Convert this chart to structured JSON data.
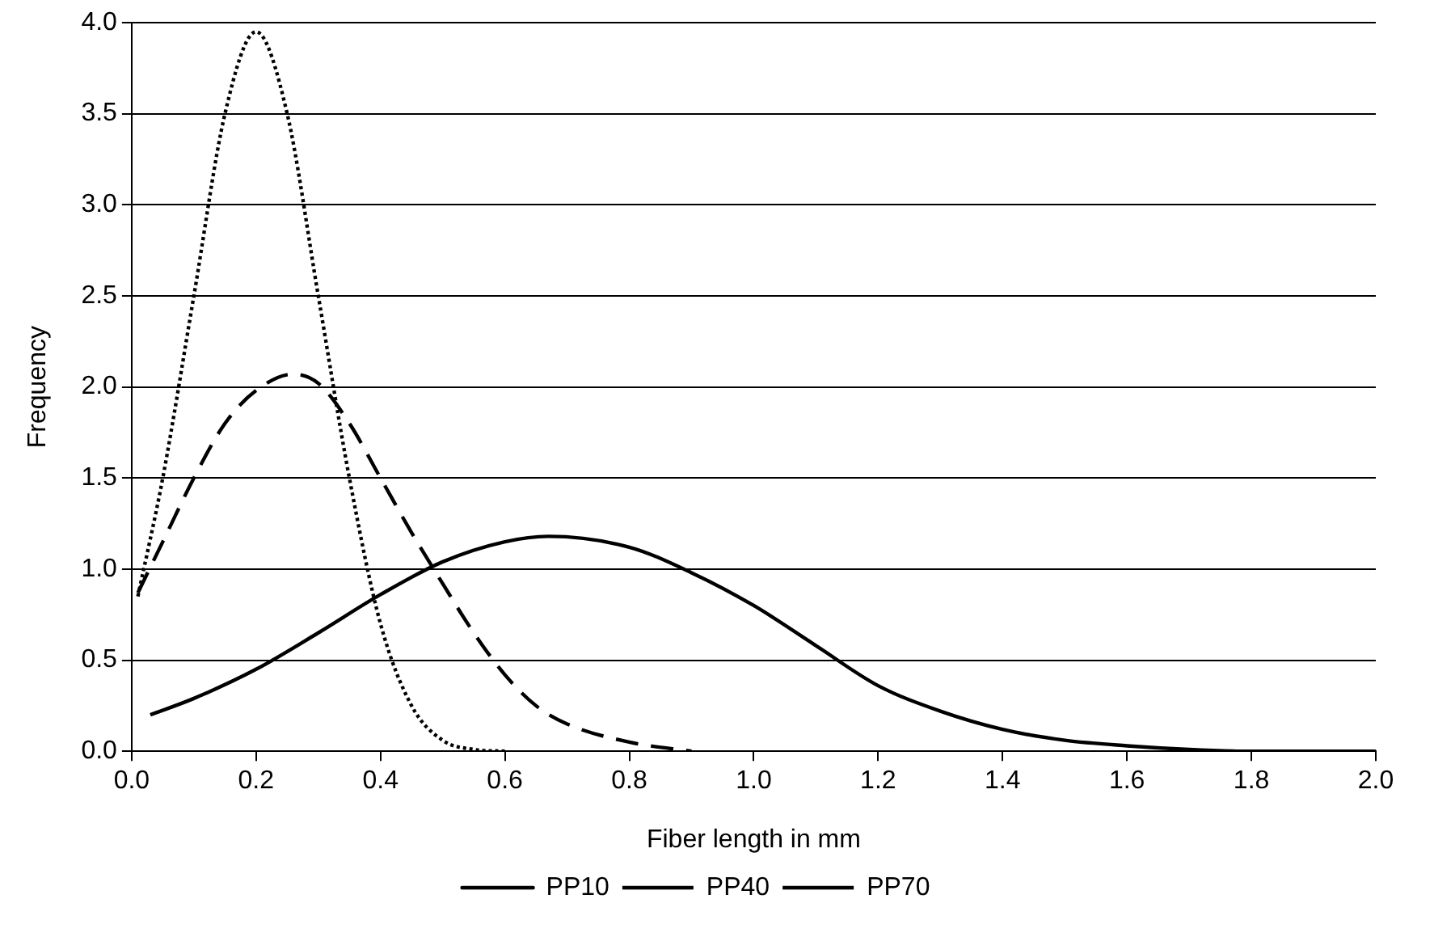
{
  "chart_data": {
    "type": "line",
    "xlabel": "Fiber length in mm",
    "ylabel": "Frequency",
    "xlim": [
      0,
      2
    ],
    "xticks": [
      {
        "value": 0,
        "label": "0.0"
      },
      {
        "value": 0.2,
        "label": "0.2"
      },
      {
        "value": 0.4,
        "label": "0.4"
      },
      {
        "value": 0.6,
        "label": "0.6"
      },
      {
        "value": 0.8,
        "label": "0.8"
      },
      {
        "value": 1,
        "label": "1.0"
      },
      {
        "value": 1.2,
        "label": "1.2"
      },
      {
        "value": 1.4,
        "label": "1.4"
      },
      {
        "value": 1.6,
        "label": "1.6"
      },
      {
        "value": 1.8,
        "label": "1.8"
      },
      {
        "value": 2,
        "label": "2.0"
      }
    ],
    "ylim": [
      0,
      4
    ],
    "yticks": [
      {
        "value": 0,
        "label": "0.0"
      },
      {
        "value": 0.5,
        "label": "0.5"
      },
      {
        "value": 1,
        "label": "1.0"
      },
      {
        "value": 1.5,
        "label": "1.5"
      },
      {
        "value": 2,
        "label": "2.0"
      },
      {
        "value": 2.5,
        "label": "2.5"
      },
      {
        "value": 3,
        "label": "3.0"
      },
      {
        "value": 3.5,
        "label": "3.5"
      },
      {
        "value": 4,
        "label": "4.0"
      }
    ],
    "grid": "y",
    "legend": "bottom",
    "marker": "none",
    "series": [
      {
        "name": "PP10",
        "color": "#000000",
        "line_style": "solid",
        "x": [
          0.03,
          0.1,
          0.2,
          0.3,
          0.4,
          0.5,
          0.6,
          0.67,
          0.8,
          0.9,
          1.0,
          1.1,
          1.2,
          1.3,
          1.4,
          1.5,
          1.6,
          1.7,
          1.8,
          2.0
        ],
        "values": [
          0.2,
          0.29,
          0.45,
          0.65,
          0.86,
          1.04,
          1.15,
          1.18,
          1.12,
          0.98,
          0.8,
          0.58,
          0.36,
          0.22,
          0.12,
          0.06,
          0.03,
          0.01,
          0.0,
          0.0
        ]
      },
      {
        "name": "PP40",
        "color": "#000000",
        "line_style": "dashed",
        "x": [
          0.01,
          0.05,
          0.1,
          0.15,
          0.2,
          0.26,
          0.3,
          0.35,
          0.4,
          0.45,
          0.5,
          0.55,
          0.6,
          0.65,
          0.7,
          0.8,
          0.9
        ],
        "values": [
          0.87,
          1.15,
          1.5,
          1.8,
          1.98,
          2.07,
          2.02,
          1.8,
          1.5,
          1.2,
          0.92,
          0.65,
          0.42,
          0.25,
          0.15,
          0.05,
          0.0
        ]
      },
      {
        "name": "PP70",
        "color": "#000000",
        "line_style": "dotted",
        "x": [
          0.01,
          0.05,
          0.1,
          0.15,
          0.2,
          0.25,
          0.3,
          0.35,
          0.4,
          0.45,
          0.5,
          0.55,
          0.6
        ],
        "values": [
          0.85,
          1.5,
          2.5,
          3.5,
          3.95,
          3.5,
          2.5,
          1.5,
          0.7,
          0.25,
          0.06,
          0.01,
          0.0
        ]
      }
    ]
  }
}
